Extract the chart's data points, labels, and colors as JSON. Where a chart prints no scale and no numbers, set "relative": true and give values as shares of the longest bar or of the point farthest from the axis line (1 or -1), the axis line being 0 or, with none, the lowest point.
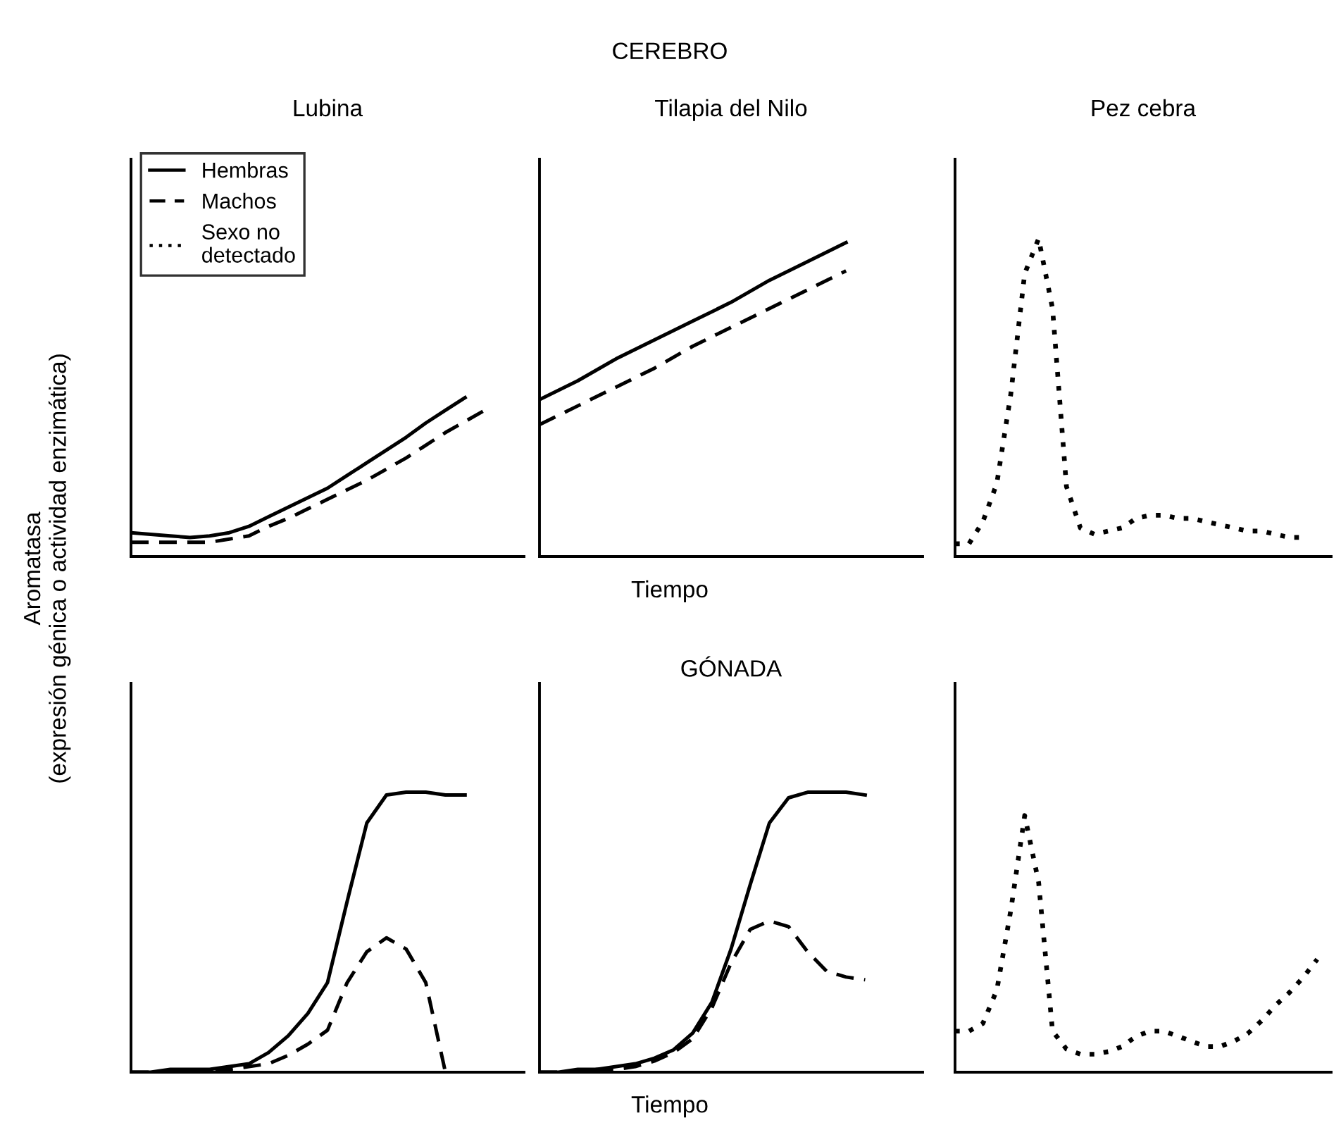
{
  "chart_data": [
    {
      "type": "line",
      "title": "Lubina",
      "ylabel": "Aromatasa\n(expresión génica o actividad enzimática)",
      "relative": true,
      "tick_labels": false,
      "legend": "top left",
      "categories": [
        null,
        null,
        null,
        null,
        null,
        null,
        null,
        null,
        null,
        null,
        null,
        null,
        null,
        null,
        null,
        null,
        null,
        null,
        null,
        null,
        null
      ],
      "series": [
        {
          "name": "Hembras",
          "color": "#000000",
          "line_style": "solid",
          "values": [
            0.15,
            0.14,
            0.13,
            0.12,
            0.13,
            0.15,
            0.19,
            0.25,
            0.31,
            0.37,
            0.43,
            0.51,
            0.59,
            0.67,
            0.75,
            0.84,
            0.92,
            1,
            null,
            null,
            null
          ]
        },
        {
          "name": "Machos",
          "color": "#000000",
          "line_style": "dashed",
          "values": [
            0.09,
            0.09,
            0.09,
            0.09,
            0.09,
            0.11,
            0.13,
            0.19,
            0.24,
            0.3,
            0.36,
            0.42,
            0.48,
            0.55,
            0.62,
            0.7,
            0.78,
            0.85,
            0.92,
            null,
            null
          ]
        }
      ]
    },
    {
      "type": "line",
      "title": "Tilapia del Nilo",
      "xlabel": "Tiempo",
      "annotations": [
        "CEREBRO"
      ],
      "relative": true,
      "tick_labels": false,
      "categories": [
        null,
        null,
        null,
        null,
        null,
        null,
        null,
        null,
        null,
        null,
        null
      ],
      "series": [
        {
          "color": "#000000",
          "line_style": "solid",
          "values": [
            0.5,
            0.56,
            0.63,
            0.69,
            0.75,
            0.81,
            0.88,
            0.94,
            1,
            null,
            null
          ]
        },
        {
          "color": "#000000",
          "line_style": "dashed",
          "values": [
            0.42,
            0.48,
            0.54,
            0.6,
            0.67,
            0.73,
            0.79,
            0.85,
            0.91,
            null,
            null
          ]
        }
      ]
    },
    {
      "type": "line",
      "title": "Pez cebra",
      "relative": true,
      "tick_labels": false,
      "categories": [
        null,
        null,
        null,
        null,
        null,
        null,
        null,
        null,
        null,
        null,
        null,
        null,
        null,
        null,
        null,
        null,
        null,
        null,
        null,
        null,
        null,
        null,
        null,
        null,
        null,
        null,
        null,
        null
      ],
      "series": [
        {
          "name": "Sexo no\ndetectado",
          "color": "#000000",
          "line_style": "dotted",
          "values": [
            0.04,
            0.04,
            0.11,
            0.23,
            0.51,
            0.89,
            1,
            0.78,
            0.22,
            0.09,
            0.07,
            0.08,
            0.09,
            0.12,
            0.13,
            0.13,
            0.12,
            0.12,
            0.11,
            0.1,
            0.09,
            0.08,
            0.08,
            0.07,
            0.06,
            0.06,
            null,
            null
          ]
        }
      ]
    },
    {
      "type": "line",
      "relative": true,
      "tick_labels": false,
      "categories": [
        null,
        null,
        null,
        null,
        null,
        null,
        null,
        null,
        null,
        null,
        null,
        null,
        null,
        null,
        null,
        null,
        null,
        null,
        null,
        null,
        null
      ],
      "series": [
        {
          "color": "#000000",
          "line_style": "solid",
          "values": [
            0,
            0,
            0.01,
            0.01,
            0.01,
            0.02,
            0.03,
            0.07,
            0.13,
            0.21,
            0.32,
            0.61,
            0.89,
            0.99,
            1,
            1,
            0.99,
            0.99,
            null,
            null,
            null
          ]
        },
        {
          "color": "#000000",
          "line_style": "dashed",
          "values": [
            0,
            0,
            0,
            0,
            0.01,
            0.01,
            0.02,
            0.03,
            0.06,
            0.1,
            0.15,
            0.32,
            0.43,
            0.48,
            0.44,
            0.32,
            0,
            null,
            null,
            null,
            null
          ]
        }
      ]
    },
    {
      "type": "line",
      "xlabel": "Tiempo",
      "annotations": [
        "GÓNADA"
      ],
      "relative": true,
      "tick_labels": false,
      "categories": [
        null,
        null,
        null,
        null,
        null,
        null,
        null,
        null,
        null,
        null,
        null,
        null,
        null,
        null,
        null,
        null,
        null,
        null,
        null,
        null,
        null
      ],
      "series": [
        {
          "color": "#000000",
          "line_style": "solid",
          "values": [
            0,
            0,
            0.01,
            0.01,
            0.02,
            0.03,
            0.05,
            0.08,
            0.14,
            0.25,
            0.44,
            0.67,
            0.89,
            0.98,
            1,
            1,
            1,
            0.99,
            null,
            null,
            null
          ]
        },
        {
          "color": "#000000",
          "line_style": "dashed",
          "values": [
            0,
            0,
            0,
            0.01,
            0.01,
            0.02,
            0.04,
            0.07,
            0.12,
            0.23,
            0.39,
            0.51,
            0.54,
            0.52,
            0.43,
            0.36,
            0.34,
            0.33,
            null,
            null,
            null
          ]
        }
      ]
    },
    {
      "type": "line",
      "relative": true,
      "tick_labels": false,
      "categories": [
        null,
        null,
        null,
        null,
        null,
        null,
        null,
        null,
        null,
        null,
        null,
        null,
        null,
        null,
        null,
        null,
        null,
        null,
        null,
        null,
        null,
        null,
        null,
        null,
        null,
        null,
        null,
        null
      ],
      "series": [
        {
          "color": "#000000",
          "line_style": "dotted",
          "values": [
            0.16,
            0.16,
            0.19,
            0.32,
            0.63,
            1,
            0.74,
            0.16,
            0.09,
            0.07,
            0.07,
            0.08,
            0.1,
            0.14,
            0.16,
            0.16,
            0.14,
            0.12,
            0.1,
            0.1,
            0.12,
            0.15,
            0.2,
            0.26,
            0.31,
            0.37,
            0.44,
            null
          ]
        }
      ]
    }
  ]
}
